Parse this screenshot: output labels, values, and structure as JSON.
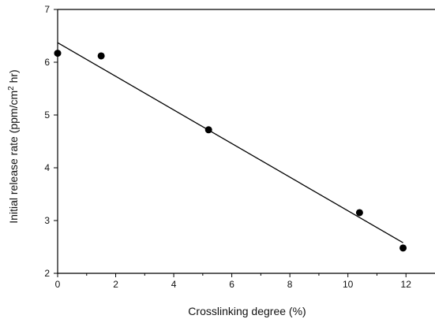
{
  "chart_data": {
    "type": "scatter",
    "xlabel": "Crosslinking degree (%)",
    "ylabel": {
      "prefix": "Initial release rate (ppm/cm",
      "superscript": "2",
      "suffix": " hr)"
    },
    "xlim": [
      0,
      13
    ],
    "ylim": [
      2,
      7
    ],
    "x_ticks": [
      0,
      2,
      4,
      6,
      8,
      10,
      12
    ],
    "y_ticks": [
      2,
      3,
      4,
      5,
      6,
      7
    ],
    "grid": false,
    "legend": "none",
    "colors": {
      "marker": "#000000",
      "line": "#000000",
      "axis": "#000000"
    },
    "series": [
      {
        "type": "scatter",
        "points": [
          {
            "x": 0,
            "y": 6.17
          },
          {
            "x": 1.5,
            "y": 6.12
          },
          {
            "x": 5.2,
            "y": 4.72
          },
          {
            "x": 10.4,
            "y": 3.15
          },
          {
            "x": 11.9,
            "y": 2.48
          }
        ]
      },
      {
        "type": "line",
        "points": [
          {
            "x": 0,
            "y": 6.37
          },
          {
            "x": 11.9,
            "y": 2.58
          }
        ]
      }
    ]
  }
}
